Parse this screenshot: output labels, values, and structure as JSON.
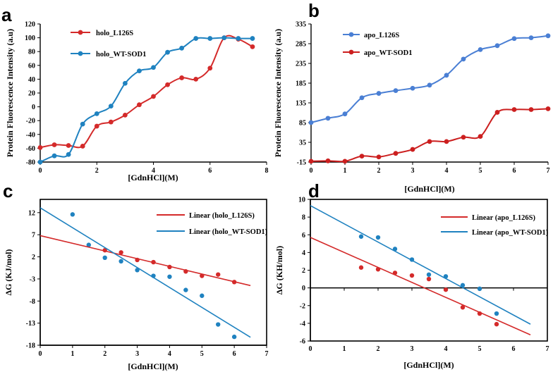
{
  "chart_data": [
    {
      "panel": "a",
      "type": "line",
      "xlabel": "[GdnHCl](M)",
      "ylabel": "Protein Fluorescence Intensity (a.u)",
      "xlim": [
        0,
        8
      ],
      "ylim": [
        -80,
        120
      ],
      "xticks": [
        0,
        2,
        4,
        6,
        8
      ],
      "yticks": [
        -80,
        -60,
        -40,
        -20,
        0,
        20,
        40,
        60,
        80,
        100,
        120
      ],
      "series": [
        {
          "name": "holo_L126S",
          "color": "#d42a2a",
          "x": [
            0,
            0.5,
            1,
            1.5,
            2,
            2.5,
            3,
            3.5,
            4,
            4.5,
            5,
            5.5,
            6,
            6.5,
            7,
            7.5
          ],
          "y": [
            -59,
            -55,
            -56,
            -57,
            -28,
            -22,
            -12,
            3,
            15,
            32,
            42,
            40,
            56,
            100,
            98,
            87
          ]
        },
        {
          "name": "holo_WT-SOD1",
          "color": "#1f82c0",
          "x": [
            0,
            0.5,
            1,
            1.5,
            2,
            2.5,
            3,
            3.5,
            4,
            4.5,
            5,
            5.5,
            6,
            6.5,
            7,
            7.5
          ],
          "y": [
            -80,
            -71,
            -69,
            -25,
            -10,
            1,
            34,
            52,
            57,
            79,
            85,
            99,
            99,
            100,
            99,
            99
          ]
        }
      ]
    },
    {
      "panel": "b",
      "type": "line",
      "xlabel": "[GdnHCl](M)",
      "ylabel": "Protein Fluorescence Intensity (a.u)",
      "xlim": [
        0,
        7
      ],
      "ylim": [
        -15,
        335
      ],
      "xticks": [
        0,
        1,
        2,
        3,
        4,
        5,
        6,
        7
      ],
      "yticks": [
        -15,
        35,
        85,
        135,
        185,
        235,
        285,
        335
      ],
      "series": [
        {
          "name": "apo_L126S",
          "color": "#4a7fd4",
          "x": [
            0,
            0.5,
            1,
            1.5,
            2,
            2.5,
            3,
            3.5,
            4,
            4.5,
            5,
            5.5,
            6,
            6.5,
            7
          ],
          "y": [
            85,
            96,
            107,
            148,
            159,
            166,
            172,
            180,
            205,
            246,
            270,
            280,
            298,
            300,
            305
          ]
        },
        {
          "name": "apo_WT-SOD1",
          "color": "#cc1f1f",
          "x": [
            0,
            0.5,
            1,
            1.5,
            2,
            2.5,
            3,
            3.5,
            4,
            4.5,
            5,
            5.5,
            6,
            6.5,
            7
          ],
          "y": [
            -13,
            -12,
            -13,
            0,
            -2,
            7,
            17,
            37,
            37,
            48,
            50,
            111,
            118,
            118,
            120
          ]
        }
      ]
    },
    {
      "panel": "c",
      "type": "scatter",
      "xlabel": "[GdnHCl](M)",
      "ylabel": "ΔG (KJ/mol)",
      "xlim": [
        0,
        7
      ],
      "ylim": [
        -18,
        15
      ],
      "xticks": [
        0,
        1,
        2,
        3,
        4,
        5,
        6,
        7
      ],
      "yticks": [
        -18,
        -13,
        -8,
        -3,
        2,
        7,
        12
      ],
      "series": [
        {
          "name": "holo_L126S",
          "color": "#d42a2a",
          "x": [
            2,
            2.5,
            3,
            3.5,
            4,
            4.5,
            5,
            5.5,
            6
          ],
          "y": [
            3.5,
            3.0,
            1.3,
            0.8,
            -0.3,
            -1.3,
            -2.3,
            -2.0,
            -3.7
          ]
        },
        {
          "name": "holo_WT-SOD1",
          "color": "#1f82c0",
          "x": [
            1,
            1.5,
            2,
            2.5,
            3,
            3.5,
            4,
            4.5,
            5,
            5.5,
            6
          ],
          "y": [
            11.6,
            4.7,
            1.8,
            1.0,
            -1.0,
            -2.3,
            -2.5,
            -5.5,
            -6.8,
            -13.3,
            -16.1
          ]
        }
      ],
      "fits": [
        {
          "name": "Linear (holo_L126S)",
          "color": "#d42a2a",
          "x": [
            0,
            6.5
          ],
          "y": [
            6.8,
            -4.5
          ]
        },
        {
          "name": "Linear (holo_WT-SOD1)",
          "color": "#1f82c0",
          "x": [
            0,
            6.5
          ],
          "y": [
            13.1,
            -16.2
          ]
        }
      ]
    },
    {
      "panel": "d",
      "type": "scatter",
      "xlabel": "[GdnHCl](M)",
      "ylabel": "ΔG (KH/mol)",
      "xlim": [
        0,
        7
      ],
      "ylim": [
        -6,
        10
      ],
      "xticks": [
        0,
        1,
        2,
        3,
        4,
        5,
        6,
        7
      ],
      "yticks": [
        -6,
        -4,
        -2,
        0,
        2,
        4,
        6,
        8,
        10
      ],
      "series": [
        {
          "name": "apo_L126S",
          "color": "#d42a2a",
          "x": [
            1.5,
            2,
            2.5,
            3,
            3.5,
            4,
            4.5,
            5,
            5.5
          ],
          "y": [
            2.3,
            2.1,
            1.7,
            1.4,
            1.0,
            -0.2,
            -2.2,
            -2.9,
            -4.1
          ]
        },
        {
          "name": "apo_WT-SOD1",
          "color": "#1f82c0",
          "x": [
            1.5,
            2,
            2.5,
            3,
            3.5,
            4,
            4.5,
            5,
            5.5
          ],
          "y": [
            5.8,
            5.7,
            4.4,
            3.2,
            1.5,
            1.3,
            0.3,
            -0.1,
            -2.9
          ]
        }
      ],
      "fits": [
        {
          "name": "Linear (apo_L126S)",
          "color": "#d42a2a",
          "x": [
            0,
            6.5
          ],
          "y": [
            5.7,
            -5.3
          ]
        },
        {
          "name": "Linear (apo_WT-SOD1)",
          "color": "#1f82c0",
          "x": [
            0,
            6.5
          ],
          "y": [
            9.3,
            -4.1
          ]
        }
      ]
    }
  ]
}
